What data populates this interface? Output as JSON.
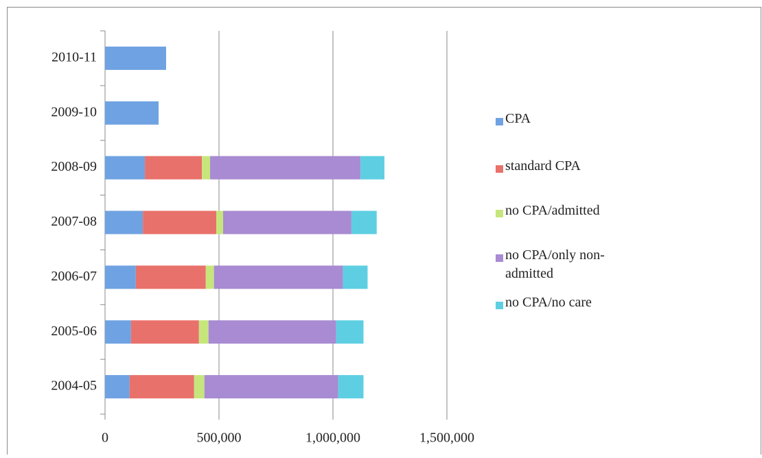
{
  "chart_data": {
    "type": "bar",
    "orientation": "horizontal",
    "stacked": true,
    "categories": [
      "2004-05",
      "2005-06",
      "2006-07",
      "2007-08",
      "2008-09",
      "2009-10",
      "2010-11"
    ],
    "series": [
      {
        "name": "CPA",
        "color": "#6fa2e2",
        "values": [
          108000,
          114000,
          135000,
          166000,
          175000,
          235000,
          268000
        ]
      },
      {
        "name": "standard CPA",
        "color": "#e9716b",
        "values": [
          283000,
          298000,
          307000,
          322000,
          250000,
          null,
          null
        ]
      },
      {
        "name": "no CPA/admitted",
        "color": "#c6e67c",
        "values": [
          45000,
          42000,
          36000,
          30000,
          36000,
          null,
          null
        ]
      },
      {
        "name": "no CPA/only non-admitted",
        "color": "#a88bd2",
        "values": [
          587000,
          560000,
          566000,
          563000,
          660000,
          null,
          null
        ]
      },
      {
        "name": "no CPA/no care",
        "color": "#5ecfe2",
        "values": [
          111000,
          120000,
          108000,
          111000,
          105000,
          null,
          null
        ]
      }
    ],
    "xlim": [
      0,
      1500000
    ],
    "xticks": [
      0,
      {
        "value": 500000,
        "label": "500,000"
      },
      {
        "value": 1000000,
        "label": "1,000,000"
      },
      {
        "value": 1500000,
        "label": "1,500,000"
      }
    ],
    "grid": true
  }
}
